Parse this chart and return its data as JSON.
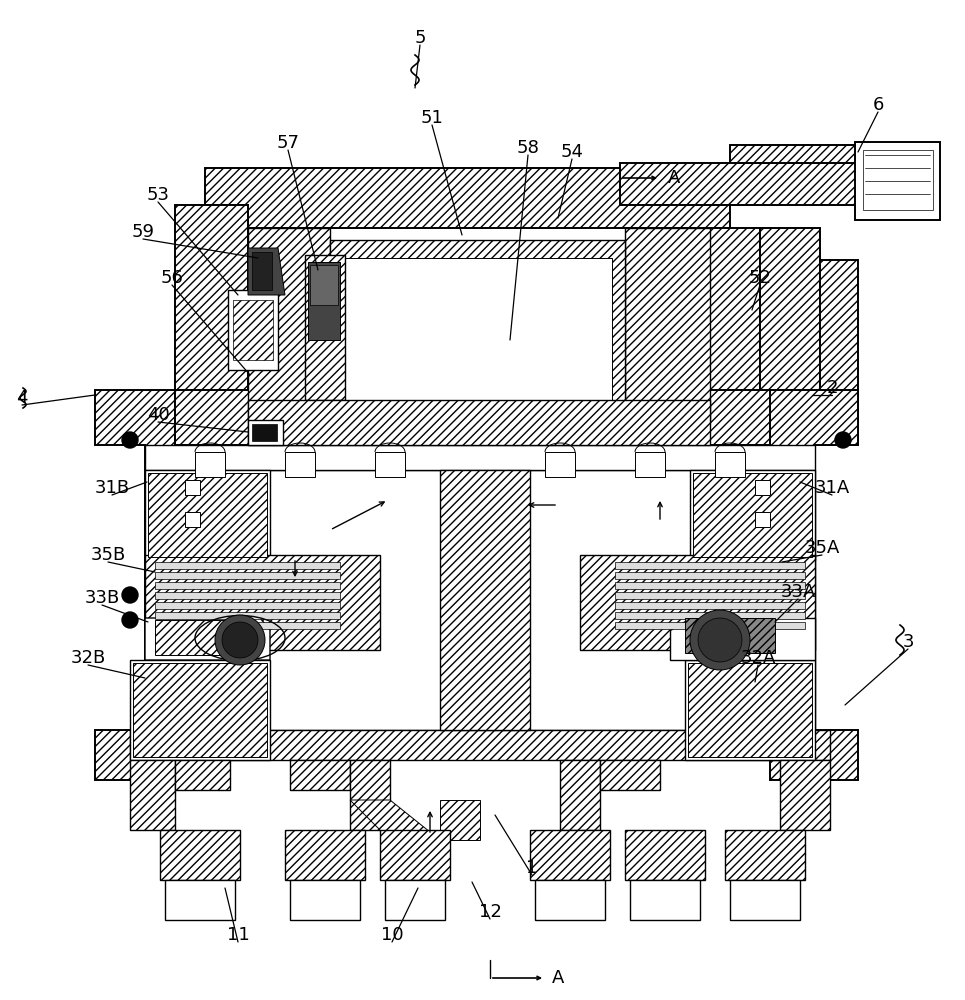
{
  "background_color": "#ffffff",
  "line_color": "#000000",
  "figsize": [
    9.65,
    10.0
  ],
  "dpi": 100,
  "labels_with_lines": [
    [
      "5",
      420,
      38,
      415,
      75,
      true
    ],
    [
      "6",
      878,
      105,
      820,
      160,
      true
    ],
    [
      "51",
      432,
      118,
      462,
      205,
      true
    ],
    [
      "52",
      760,
      278,
      752,
      300,
      true
    ],
    [
      "53",
      158,
      195,
      238,
      282,
      true
    ],
    [
      "54",
      572,
      152,
      558,
      210,
      true
    ],
    [
      "56",
      172,
      278,
      232,
      358,
      true
    ],
    [
      "57",
      288,
      143,
      300,
      268,
      true
    ],
    [
      "58",
      528,
      148,
      510,
      335,
      true
    ],
    [
      "59",
      143,
      232,
      252,
      265,
      true
    ],
    [
      "40",
      158,
      415,
      190,
      428,
      true
    ],
    [
      "2",
      832,
      388,
      808,
      392,
      true
    ],
    [
      "4",
      22,
      398,
      95,
      393,
      true
    ],
    [
      "31B",
      112,
      488,
      147,
      482,
      true
    ],
    [
      "31A",
      832,
      488,
      800,
      482,
      true
    ],
    [
      "35B",
      108,
      555,
      152,
      568,
      true
    ],
    [
      "35A",
      822,
      548,
      782,
      562,
      true
    ],
    [
      "33B",
      102,
      598,
      148,
      618,
      true
    ],
    [
      "33A",
      798,
      592,
      778,
      618,
      true
    ],
    [
      "32B",
      88,
      658,
      148,
      678,
      true
    ],
    [
      "32A",
      758,
      658,
      758,
      682,
      true
    ],
    [
      "1",
      532,
      868,
      490,
      812,
      true
    ],
    [
      "10",
      392,
      935,
      415,
      888,
      true
    ],
    [
      "11",
      238,
      935,
      222,
      888,
      true
    ],
    [
      "12",
      490,
      912,
      470,
      882,
      true
    ],
    [
      "3",
      908,
      642,
      845,
      700,
      true
    ]
  ]
}
